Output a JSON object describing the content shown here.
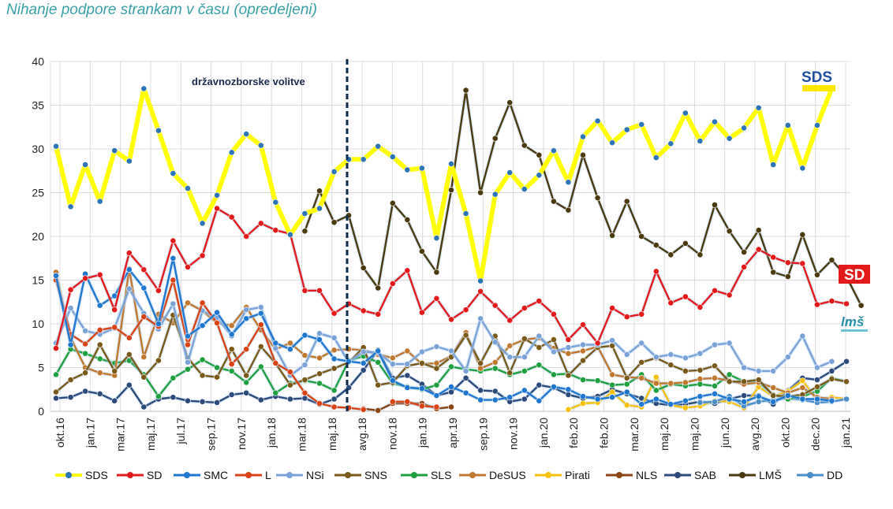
{
  "chart_data": {
    "type": "line",
    "title": "Nihanje podpore strankam v času (opredeljeni)",
    "ylim": [
      0,
      40
    ],
    "yticks": [
      0,
      5,
      10,
      15,
      20,
      25,
      30,
      35,
      40
    ],
    "grid": true,
    "legend_position": "bottom",
    "annotation": "državnozborske volitve",
    "x_tick_labels": [
      "okt.16",
      "jan.17",
      "mar.17",
      "maj.17",
      "jul.17",
      "sep.17",
      "nov.17",
      "jan.18",
      "mar.18",
      "maj.18",
      "avg.18",
      "nov.18",
      "jan.19",
      "apr.19",
      "sep.19",
      "nov.19",
      "jan.20",
      "feb.20",
      "feb.20",
      "mar.20",
      "maj.20",
      "maj.20",
      "jun.20",
      "avg.20",
      "okt.20",
      "dec.20",
      "jan.21"
    ],
    "logos": {
      "sds": "SDS",
      "sd": "SD",
      "lms": "lmš"
    },
    "series": [
      {
        "name": "SDS",
        "color": "#2e75b6",
        "glow": "#ffff00",
        "values": [
          30.3,
          23.4,
          28.2,
          24.0,
          29.8,
          28.6,
          36.9,
          32.1,
          27.2,
          25.5,
          21.5,
          24.7,
          29.6,
          31.7,
          30.4,
          23.9,
          20.2,
          22.6,
          23.2,
          27.4,
          28.8,
          28.8,
          30.3,
          29.1,
          27.6,
          27.8,
          19.8,
          28.3,
          22.6,
          14.9,
          24.8,
          27.3,
          25.4,
          27.0,
          29.8,
          26.2,
          31.4,
          33.2,
          30.7,
          32.2,
          32.8,
          29.0,
          30.6,
          34.1,
          30.9,
          33.1,
          31.2,
          32.4,
          34.7,
          28.2,
          32.7,
          27.8,
          32.7,
          36.9
        ]
      },
      {
        "name": "SD",
        "color": "#e31a1c",
        "values": [
          7.2,
          13.9,
          15.2,
          15.6,
          11.6,
          18.1,
          16.2,
          13.8,
          19.5,
          16.5,
          17.8,
          23.2,
          22.2,
          20.0,
          21.5,
          20.7,
          20.3,
          13.8,
          13.8,
          11.2,
          12.3,
          11.5,
          11.1,
          14.6,
          16.1,
          11.3,
          12.9,
          10.5,
          11.6,
          13.7,
          12.1,
          10.4,
          11.8,
          12.6,
          11.1,
          8.2,
          9.9,
          7.8,
          11.8,
          10.8,
          11.1,
          16.0,
          12.4,
          13.1,
          11.9,
          13.8,
          13.3,
          16.5,
          18.5,
          17.6,
          17.0,
          16.9,
          12.2,
          12.6,
          12.3
        ]
      },
      {
        "name": "SMC",
        "color": "#1f77d0",
        "values": [
          15.5,
          7.6,
          15.7,
          12.1,
          13.2,
          16.2,
          14.1,
          10.0,
          17.5,
          8.6,
          9.8,
          11.3,
          8.8,
          10.6,
          11.2,
          7.8,
          7.1,
          8.7,
          8.2,
          6.0,
          5.7,
          5.5,
          6.9,
          3.5,
          2.7,
          2.6,
          1.8,
          2.8,
          2.1,
          1.3,
          1.3,
          1.6,
          2.4,
          1.2,
          2.8,
          2.5,
          1.7,
          1.4,
          1.6,
          2.2,
          0.8,
          1.4,
          0.8,
          1.2,
          1.7,
          2.0,
          1.4,
          1.1,
          1.7,
          1.1,
          1.8,
          1.4,
          1.4,
          1.2
        ]
      },
      {
        "name": "L",
        "color": "#d84315",
        "values": [
          15.0,
          8.8,
          7.7,
          9.3,
          9.6,
          8.4,
          10.8,
          9.7,
          15.0,
          7.6,
          12.4,
          10.1,
          5.4,
          7.1,
          9.9,
          5.5,
          4.5,
          2.1,
          0.9,
          0.5,
          0.4,
          0.2,
          null,
          1.1,
          1.1,
          0.6,
          0.5
        ]
      },
      {
        "name": "NSi",
        "color": "#7ba3d8",
        "values": [
          7.8,
          11.8,
          9.2,
          8.8,
          9.5,
          14.0,
          11.2,
          9.4,
          12.3,
          5.6,
          11.5,
          10.7,
          8.6,
          11.6,
          11.9,
          7.2,
          4.1,
          5.3,
          8.9,
          8.4,
          5.6,
          6.8,
          6.7,
          5.4,
          5.4,
          6.8,
          7.4,
          6.9,
          4.6,
          10.6,
          7.9,
          6.2,
          6.2,
          8.6,
          6.8,
          7.3,
          7.6,
          7.6,
          8.1,
          6.5,
          7.8,
          6.2,
          6.5,
          6.1,
          6.6,
          7.6,
          7.8,
          5.0,
          4.6,
          4.6,
          6.2,
          8.6,
          5.0,
          5.7
        ]
      },
      {
        "name": "SNS",
        "color": "#7a5a1a",
        "values": [
          2.2,
          3.6,
          4.4,
          7.6,
          4.6,
          6.5,
          3.9,
          5.8,
          11.0,
          6.1,
          4.1,
          3.9,
          7.1,
          4.1,
          7.4,
          5.5,
          3.0,
          3.6,
          4.3,
          4.9,
          5.6,
          7.3,
          3.0,
          3.3,
          5.2,
          5.5,
          4.9,
          6.2,
          8.7,
          5.5,
          8.6,
          4.4,
          8.3,
          7.3,
          8.2,
          4.1,
          5.8,
          7.3,
          7.5,
          3.8,
          5.6,
          6.1,
          5.3,
          4.6,
          4.7,
          5.2,
          3.4,
          3.4,
          3.6,
          1.8,
          1.7,
          1.9,
          2.8,
          3.7,
          3.4
        ]
      },
      {
        "name": "SLS",
        "color": "#20a040",
        "values": [
          4.2,
          7.1,
          6.6,
          6.0,
          5.5,
          5.8,
          4.2,
          1.7,
          3.8,
          4.8,
          5.9,
          5.0,
          4.6,
          3.3,
          5.1,
          2.1,
          3.2,
          3.5,
          3.2,
          2.4,
          5.8,
          6.3,
          5.6,
          3.2,
          2.8,
          2.5,
          3.0,
          5.1,
          4.8,
          4.6,
          4.9,
          4.2,
          4.6,
          5.3,
          4.2,
          4.3,
          3.6,
          3.5,
          3.0,
          3.1,
          4.2,
          2.4,
          3.1,
          2.9,
          3.1,
          2.9,
          4.2,
          3.4,
          3.3,
          1.9,
          1.4,
          1.7,
          2.3,
          3.8,
          3.4
        ]
      },
      {
        "name": "DeSUS",
        "color": "#c07830",
        "values": [
          15.9,
          8.4,
          5.0,
          4.4,
          4.1,
          16.3,
          6.2,
          11.1,
          10.1,
          12.4,
          11.5,
          10.1,
          9.8,
          11.9,
          9.3,
          7.1,
          7.8,
          6.4,
          6.1,
          7.0,
          7.1,
          7.0,
          6.5,
          6.1,
          6.9,
          5.4,
          5.5,
          6.3,
          9.0,
          4.9,
          5.6,
          7.5,
          8.2,
          8.4,
          7.2,
          6.6,
          6.9,
          7.4,
          4.2,
          3.9,
          3.8,
          3.2,
          3.2,
          3.3,
          3.7,
          3.8,
          3.5,
          3.1,
          3.3,
          2.7,
          2.1,
          2.7,
          1.6,
          1.4
        ]
      },
      {
        "name": "Pirati",
        "color": "#f4c20d",
        "values": [
          null,
          null,
          null,
          null,
          null,
          null,
          null,
          null,
          null,
          null,
          null,
          null,
          null,
          null,
          null,
          null,
          null,
          null,
          null,
          null,
          null,
          null,
          null,
          null,
          null,
          null,
          null,
          null,
          null,
          null,
          null,
          null,
          null,
          null,
          null,
          0.2,
          0.9,
          1.0,
          2.2,
          0.7,
          0.5,
          3.9,
          0.7,
          0.4,
          0.6,
          1.2,
          1.1,
          0.4,
          2.8,
          1.7,
          2.3,
          3.5,
          1.3,
          1.6,
          1.4
        ]
      },
      {
        "name": "NLS",
        "color": "#8b4513",
        "values": [
          null,
          null,
          null,
          null,
          null,
          null,
          null,
          null,
          null,
          null,
          null,
          null,
          null,
          null,
          null,
          null,
          null,
          null,
          null,
          null,
          null,
          0.3,
          0.1,
          0.9,
          0.9,
          0.9,
          0.3,
          0.5,
          null,
          null,
          null,
          null,
          null,
          null,
          null,
          null,
          null,
          null,
          null,
          null,
          null,
          null,
          null,
          null,
          null,
          null,
          null,
          null,
          null,
          null,
          null,
          null,
          null,
          null,
          null
        ]
      },
      {
        "name": "SAB",
        "color": "#2c4a7a",
        "values": [
          1.5,
          1.6,
          2.3,
          2.0,
          1.2,
          3.0,
          0.5,
          1.4,
          1.6,
          1.2,
          1.1,
          1.0,
          1.9,
          2.1,
          1.3,
          1.7,
          1.4,
          1.5,
          0.8,
          1.4,
          2.7,
          4.7,
          7.0,
          3.8,
          4.1,
          3.1,
          1.8,
          2.2,
          3.8,
          2.4,
          2.3,
          1.1,
          1.4,
          3.0,
          2.7,
          1.9,
          1.5,
          1.7,
          2.5,
          2.0,
          1.5,
          0.9,
          0.7,
          0.8,
          1.1,
          0.9,
          1.4,
          1.8,
          1.8,
          0.8,
          2.4,
          3.8,
          3.6,
          4.6,
          5.7
        ]
      },
      {
        "name": "LMŠ",
        "color": "#4a3a0f",
        "values": [
          null,
          null,
          null,
          null,
          null,
          null,
          null,
          null,
          null,
          null,
          null,
          null,
          null,
          null,
          null,
          null,
          null,
          20.6,
          25.2,
          21.6,
          22.4,
          16.4,
          14.1,
          23.8,
          21.9,
          18.3,
          15.9,
          25.3,
          36.7,
          25.0,
          31.2,
          35.3,
          30.4,
          29.3,
          24.0,
          23.0,
          29.3,
          24.4,
          20.1,
          24.0,
          20.0,
          19.0,
          17.9,
          19.2,
          17.9,
          23.6,
          20.6,
          18.2,
          20.7,
          15.9,
          15.4,
          20.2,
          15.6,
          17.3,
          15.4,
          12.1
        ]
      },
      {
        "name": "DD",
        "color": "#4a8ec8",
        "values": [
          null,
          null,
          null,
          null,
          null,
          null,
          null,
          null,
          null,
          null,
          null,
          null,
          null,
          null,
          null,
          null,
          null,
          null,
          null,
          null,
          null,
          null,
          null,
          null,
          null,
          null,
          null,
          null,
          null,
          null,
          null,
          null,
          null,
          null,
          null,
          null,
          null,
          null,
          null,
          null,
          null,
          null,
          null,
          null,
          1.0,
          1.1,
          1.7,
          0.6,
          1.1,
          1.3,
          1.5,
          1.3,
          1.0,
          1.1,
          1.4
        ]
      }
    ]
  }
}
